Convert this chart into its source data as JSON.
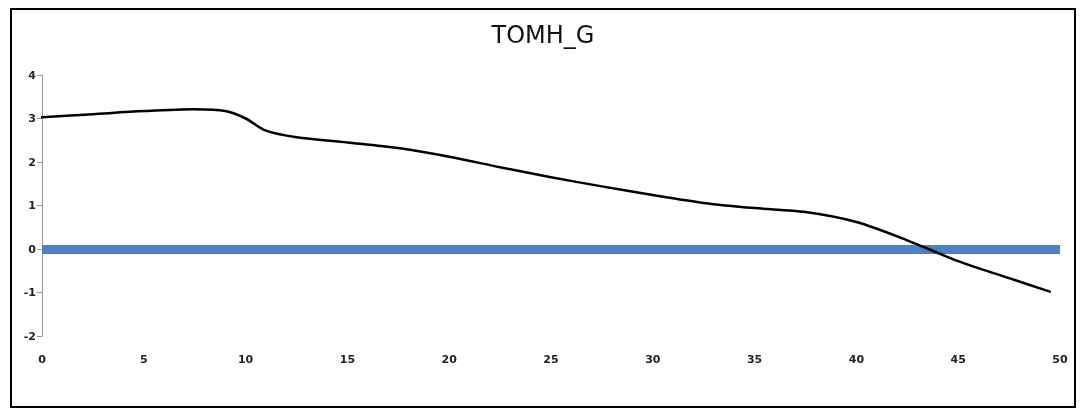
{
  "chart_data": {
    "type": "line",
    "title": "TOMH_G",
    "series": [
      {
        "color": "#000000",
        "x": [
          0,
          2.5,
          5,
          7.5,
          9,
          10,
          11,
          12.5,
          15,
          17.5,
          20,
          22.5,
          25,
          27.5,
          30,
          32.5,
          35,
          37.5,
          40,
          42.5,
          45,
          47.5,
          49.5
        ],
        "values": [
          3.03,
          3.1,
          3.17,
          3.21,
          3.17,
          3.0,
          2.72,
          2.57,
          2.45,
          2.32,
          2.12,
          1.88,
          1.65,
          1.44,
          1.24,
          1.06,
          0.94,
          0.85,
          0.62,
          0.2,
          -0.28,
          -0.67,
          -0.98
        ]
      }
    ],
    "xlim": [
      0,
      50
    ],
    "xticks": [
      0,
      5,
      10,
      15,
      20,
      25,
      30,
      35,
      40,
      45,
      50
    ],
    "ylim": [
      -2,
      4
    ],
    "yticks": [
      -2,
      -1,
      0,
      1,
      2,
      3,
      4
    ],
    "ref_lines": [
      {
        "axis": "y",
        "value": 0,
        "color": "#4f81bd"
      }
    ],
    "grid": false,
    "marker": "none",
    "line_style": "solid"
  }
}
